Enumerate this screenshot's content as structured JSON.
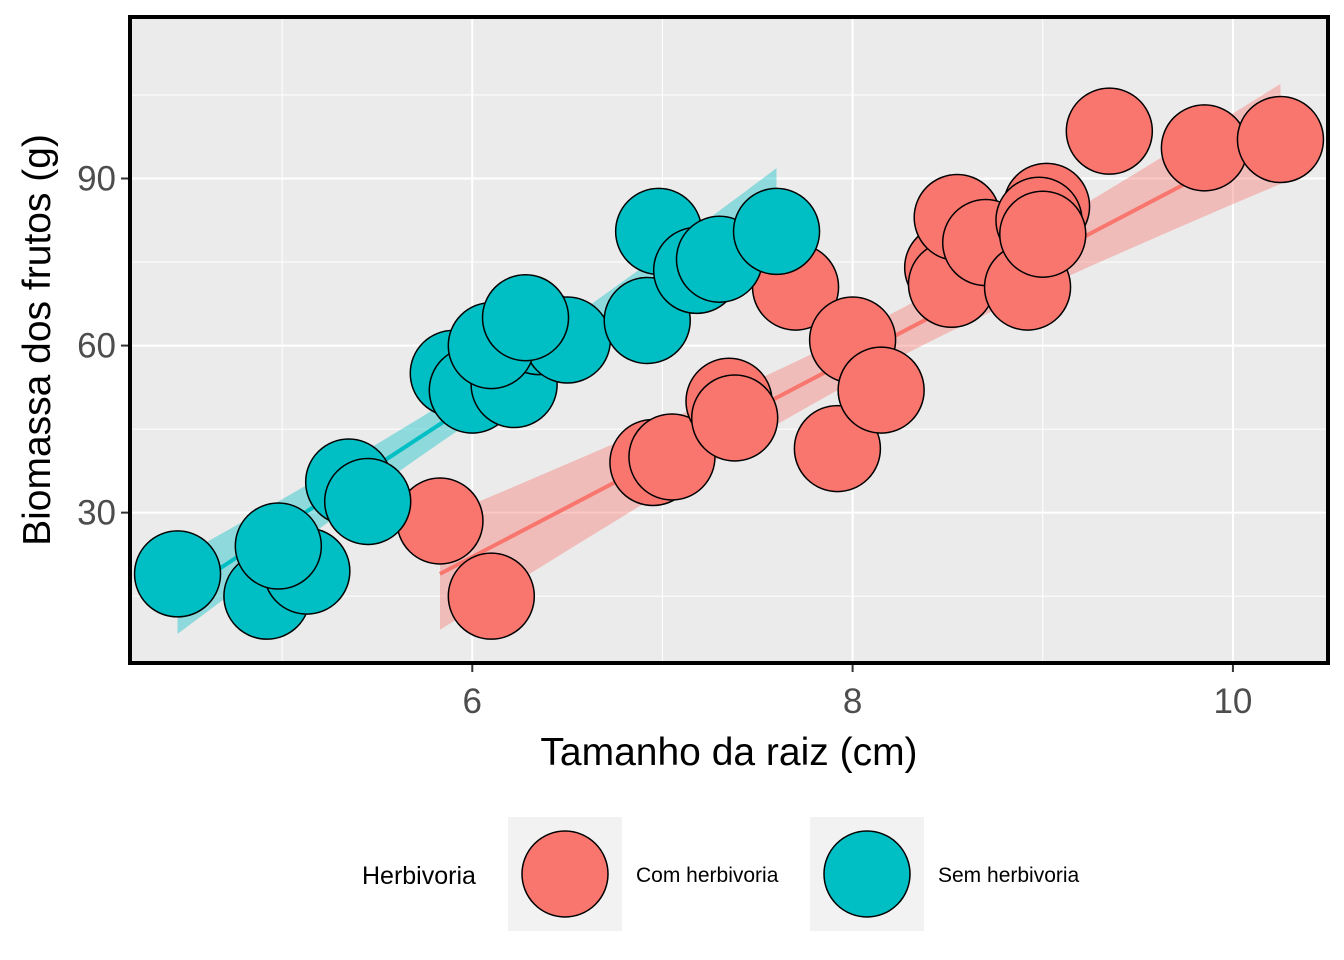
{
  "chart_data": {
    "type": "scatter",
    "title": "",
    "xlabel": "Tamanho da raiz (cm)",
    "ylabel": "Biomassa dos frutos (g)",
    "xlim": [
      4.2,
      10.5
    ],
    "ylim": [
      3,
      119
    ],
    "x_ticks": [
      6,
      8,
      10
    ],
    "x_tick_labels": [
      "6",
      "8",
      "10"
    ],
    "y_ticks": [
      30,
      60,
      90
    ],
    "y_tick_labels": [
      "30",
      "60",
      "90"
    ],
    "grid": true,
    "legend": {
      "title": "Herbivoria",
      "position": "bottom"
    },
    "series": [
      {
        "name": "Com herbivoria",
        "color": "#F8766D",
        "points": [
          [
            5.83,
            28.5
          ],
          [
            6.1,
            15.0
          ],
          [
            6.95,
            39.0
          ],
          [
            7.05,
            40.0
          ],
          [
            7.35,
            50.0
          ],
          [
            7.38,
            47.0
          ],
          [
            7.7,
            70.5
          ],
          [
            7.92,
            41.5
          ],
          [
            8.0,
            61.0
          ],
          [
            8.15,
            52.0
          ],
          [
            8.5,
            74.0
          ],
          [
            8.52,
            71.0
          ],
          [
            8.55,
            83.0
          ],
          [
            8.7,
            78.5
          ],
          [
            8.92,
            70.5
          ],
          [
            9.02,
            85.0
          ],
          [
            8.98,
            82.5
          ],
          [
            9.0,
            80.0
          ],
          [
            9.35,
            98.5
          ],
          [
            9.85,
            95.5
          ],
          [
            10.25,
            97.0
          ]
        ],
        "fit": {
          "x": [
            5.83,
            10.25
          ],
          "y": [
            19.0,
            98.0
          ]
        }
      },
      {
        "name": "Sem herbivoria",
        "color": "#00BFC4",
        "points": [
          [
            4.45,
            19.0
          ],
          [
            4.92,
            15.0
          ],
          [
            5.13,
            19.5
          ],
          [
            4.98,
            24.0
          ],
          [
            5.35,
            35.5
          ],
          [
            5.45,
            32.0
          ],
          [
            5.9,
            55.0
          ],
          [
            6.0,
            52.0
          ],
          [
            6.22,
            53.0
          ],
          [
            6.35,
            62.5
          ],
          [
            6.5,
            61.0
          ],
          [
            6.1,
            60.0
          ],
          [
            6.28,
            65.0
          ],
          [
            6.92,
            64.5
          ],
          [
            6.98,
            80.5
          ],
          [
            7.18,
            73.5
          ],
          [
            7.3,
            75.5
          ],
          [
            7.6,
            80.5
          ]
        ],
        "fit": {
          "x": [
            4.45,
            7.6
          ],
          "y": [
            15.0,
            85.5
          ]
        }
      }
    ]
  }
}
